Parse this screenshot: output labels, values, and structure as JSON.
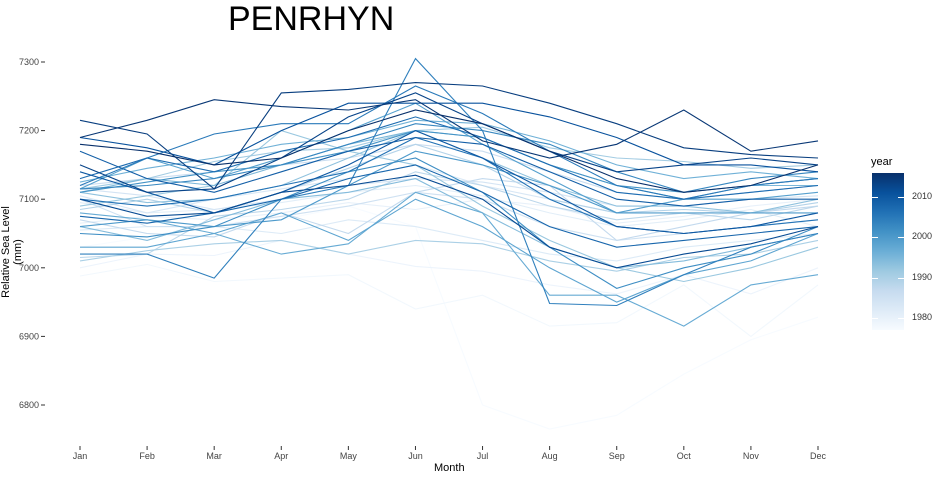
{
  "chart_data": {
    "type": "line",
    "title": "PENRHYN",
    "xlabel": "Month",
    "ylabel": "Relative Sea Level (mm)",
    "categories": [
      "Jan",
      "Feb",
      "Mar",
      "Apr",
      "May",
      "Jun",
      "Jul",
      "Aug",
      "Sep",
      "Oct",
      "Nov",
      "Dec"
    ],
    "yticks": [
      6800,
      6900,
      7000,
      7100,
      7200,
      7300
    ],
    "ylim": [
      6750,
      7320
    ],
    "legend": {
      "title": "year",
      "ticks": [
        1980,
        1990,
        2000,
        2010
      ],
      "range": [
        1977,
        2016
      ],
      "placement": "right",
      "color_low": "#f7fbff",
      "color_high": "#08306b"
    },
    "grid": false,
    "series": [
      {
        "year": 1977,
        "values": [
          7030,
          7045,
          7065,
          7070,
          7090,
          7060,
          6800,
          6765,
          6785,
          6845,
          6895,
          6928
        ]
      },
      {
        "year": 1978,
        "values": [
          6988,
          7005,
          6980,
          6985,
          6990,
          6940,
          6960,
          6915,
          6920,
          6975,
          6900,
          6975
        ]
      },
      {
        "year": 1979,
        "values": [
          7000,
          7020,
          7018,
          7040,
          7020,
          7002,
          6995,
          6975,
          6962,
          6990,
          6962,
          7000
        ]
      },
      {
        "year": 1980,
        "values": [
          7065,
          7075,
          7070,
          7080,
          7095,
          7085,
          7100,
          7090,
          7065,
          7075,
          7090,
          7100
        ]
      },
      {
        "year": 1981,
        "values": [
          7095,
          7080,
          7085,
          7095,
          7110,
          7120,
          7105,
          7080,
          7060,
          7070,
          7085,
          7060
        ]
      },
      {
        "year": 1982,
        "values": [
          7055,
          7060,
          7060,
          7050,
          7070,
          7060,
          7040,
          7020,
          7010,
          7030,
          7040,
          7050
        ]
      },
      {
        "year": 1983,
        "values": [
          7105,
          7080,
          7100,
          7115,
          7130,
          7150,
          7120,
          7100,
          7080,
          7100,
          7110,
          7120
        ]
      },
      {
        "year": 1984,
        "values": [
          7115,
          7105,
          7085,
          7100,
          7120,
          7130,
          7125,
          7110,
          7090,
          7090,
          7100,
          7105
        ]
      },
      {
        "year": 1985,
        "values": [
          7100,
          7060,
          7060,
          7075,
          7090,
          7110,
          7100,
          7060,
          7040,
          7050,
          7060,
          7070
        ]
      },
      {
        "year": 1986,
        "values": [
          7120,
          7130,
          7140,
          7150,
          7160,
          7180,
          7170,
          7140,
          7110,
          7100,
          7110,
          7120
        ]
      },
      {
        "year": 1987,
        "values": [
          7070,
          7050,
          7045,
          7080,
          7050,
          7110,
          7130,
          7120,
          7040,
          7060,
          7080,
          7090
        ]
      },
      {
        "year": 1988,
        "values": [
          7015,
          7020,
          7075,
          7085,
          7100,
          7140,
          7120,
          7090,
          7070,
          7080,
          7070,
          7090
        ]
      },
      {
        "year": 1989,
        "values": [
          7085,
          7100,
          7080,
          7110,
          7145,
          7180,
          7150,
          7100,
          7080,
          7085,
          7080,
          7095
        ]
      },
      {
        "year": 1990,
        "values": [
          7010,
          7025,
          7035,
          7040,
          7020,
          7040,
          7035,
          7010,
          6995,
          7015,
          7020,
          7040
        ]
      },
      {
        "year": 1991,
        "values": [
          7115,
          7130,
          7155,
          7170,
          7175,
          7200,
          7205,
          7175,
          7160,
          7155,
          7145,
          7150
        ]
      },
      {
        "year": 1992,
        "values": [
          7090,
          7105,
          7120,
          7200,
          7170,
          7150,
          7090,
          7040,
          7000,
          6980,
          7000,
          7030
        ]
      },
      {
        "year": 1993,
        "values": [
          7110,
          7095,
          7100,
          7120,
          7160,
          7200,
          7160,
          7120,
          7090,
          7090,
          7080,
          7100
        ]
      },
      {
        "year": 1994,
        "values": [
          7060,
          7040,
          7070,
          7100,
          7110,
          7130,
          7080,
          7030,
          7000,
          7010,
          7030,
          7050
        ]
      },
      {
        "year": 1995,
        "values": [
          7110,
          7130,
          7120,
          7150,
          7180,
          7200,
          7190,
          7150,
          7120,
          7100,
          7120,
          7120
        ]
      },
      {
        "year": 1996,
        "values": [
          7125,
          7145,
          7160,
          7180,
          7190,
          7215,
          7210,
          7185,
          7150,
          7130,
          7140,
          7130
        ]
      },
      {
        "year": 1997,
        "values": [
          7080,
          7070,
          7050,
          7020,
          7035,
          7110,
          7080,
          6960,
          6960,
          6915,
          6975,
          6990
        ]
      },
      {
        "year": 1998,
        "values": [
          7030,
          7030,
          7050,
          7080,
          7040,
          7100,
          7060,
          7000,
          6950,
          6990,
          7010,
          7050
        ]
      },
      {
        "year": 1999,
        "values": [
          7115,
          7160,
          7130,
          7160,
          7200,
          7240,
          7180,
          7130,
          7080,
          7100,
          7100,
          7110
        ]
      },
      {
        "year": 2000,
        "values": [
          7060,
          7070,
          7060,
          7070,
          7120,
          7170,
          7150,
          7120,
          7080,
          7080,
          7080,
          7080
        ]
      },
      {
        "year": 2001,
        "values": [
          7110,
          7125,
          7140,
          7150,
          7170,
          7200,
          7190,
          7150,
          7120,
          7110,
          7120,
          7130
        ]
      },
      {
        "year": 2002,
        "values": [
          7050,
          7045,
          7060,
          7100,
          7140,
          7160,
          7110,
          7030,
          6970,
          7000,
          7020,
          7060
        ]
      },
      {
        "year": 2003,
        "values": [
          7115,
          7120,
          7130,
          7150,
          7180,
          7210,
          7200,
          7180,
          7140,
          7110,
          7130,
          7140
        ]
      },
      {
        "year": 2004,
        "values": [
          7020,
          7020,
          6985,
          7100,
          7120,
          7305,
          7200,
          6948,
          6945,
          6990,
          7030,
          7050
        ]
      },
      {
        "year": 2005,
        "values": [
          7120,
          7160,
          7195,
          7210,
          7210,
          7265,
          7225,
          7170,
          7120,
          7100,
          7120,
          7130
        ]
      },
      {
        "year": 2006,
        "values": [
          7100,
          7090,
          7100,
          7120,
          7140,
          7190,
          7160,
          7100,
          7060,
          7050,
          7060,
          7070
        ]
      },
      {
        "year": 2007,
        "values": [
          7130,
          7160,
          7140,
          7170,
          7190,
          7220,
          7190,
          7150,
          7110,
          7100,
          7110,
          7120
        ]
      },
      {
        "year": 2008,
        "values": [
          7075,
          7065,
          7080,
          7100,
          7130,
          7150,
          7110,
          7060,
          7030,
          7040,
          7050,
          7060
        ]
      },
      {
        "year": 2009,
        "values": [
          7170,
          7130,
          7110,
          7140,
          7170,
          7190,
          7180,
          7140,
          7100,
          7090,
          7100,
          7100
        ]
      },
      {
        "year": 2010,
        "values": [
          7140,
          7110,
          7080,
          7110,
          7150,
          7200,
          7160,
          7110,
          7060,
          7050,
          7060,
          7080
        ]
      },
      {
        "year": 2011,
        "values": [
          7190,
          7175,
          7150,
          7200,
          7240,
          7240,
          7240,
          7220,
          7190,
          7150,
          7150,
          7140
        ]
      },
      {
        "year": 2012,
        "values": [
          7100,
          7075,
          7080,
          7110,
          7120,
          7135,
          7100,
          7030,
          7000,
          7020,
          7035,
          7060
        ]
      },
      {
        "year": 2013,
        "values": [
          7150,
          7110,
          7115,
          7160,
          7220,
          7255,
          7210,
          7170,
          7140,
          7150,
          7160,
          7150
        ]
      },
      {
        "year": 2014,
        "values": [
          7215,
          7195,
          7115,
          7255,
          7260,
          7270,
          7265,
          7240,
          7210,
          7175,
          7165,
          7160
        ]
      },
      {
        "year": 2015,
        "values": [
          7190,
          7215,
          7245,
          7235,
          7230,
          7245,
          7185,
          7160,
          7180,
          7230,
          7170,
          7185
        ]
      },
      {
        "year": 2016,
        "values": [
          7180,
          7170,
          7150,
          7160,
          7200,
          7230,
          7210,
          7170,
          7130,
          7110,
          7120,
          7150
        ]
      }
    ]
  }
}
